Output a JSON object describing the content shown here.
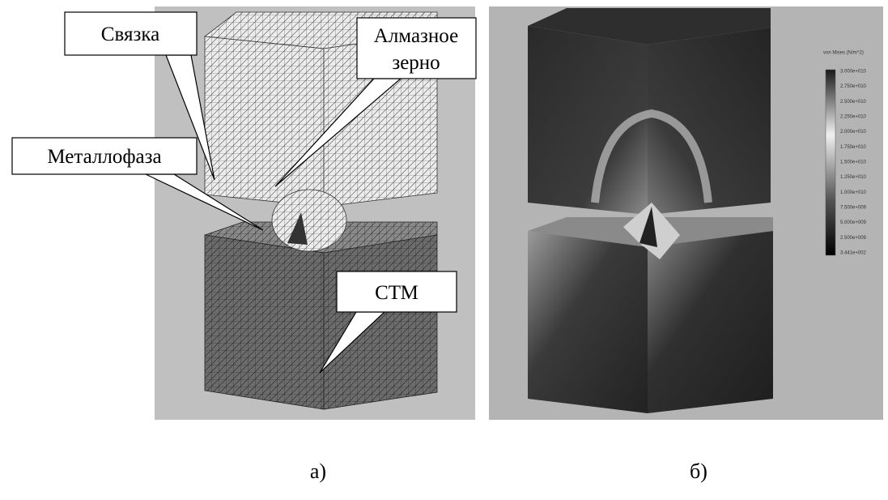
{
  "panel_a": {
    "callouts": {
      "binder": "Связка",
      "grain": [
        "Алмазное",
        "зерно"
      ],
      "metal_phase": "Металлофаза",
      "stm": "СТМ"
    },
    "caption": "а)"
  },
  "panel_b": {
    "legend": {
      "title": "von Mises (N/m^2)",
      "labels": [
        "3.000e+010",
        "2.750e+010",
        "2.500e+010",
        "2.250e+010",
        "2.000e+010",
        "1.750e+010",
        "1.500e+010",
        "1.250e+010",
        "1.000e+010",
        "7.500e+009",
        "5.000e+009",
        "2.500e+009",
        "3.441e+002"
      ]
    },
    "caption": "б)"
  }
}
